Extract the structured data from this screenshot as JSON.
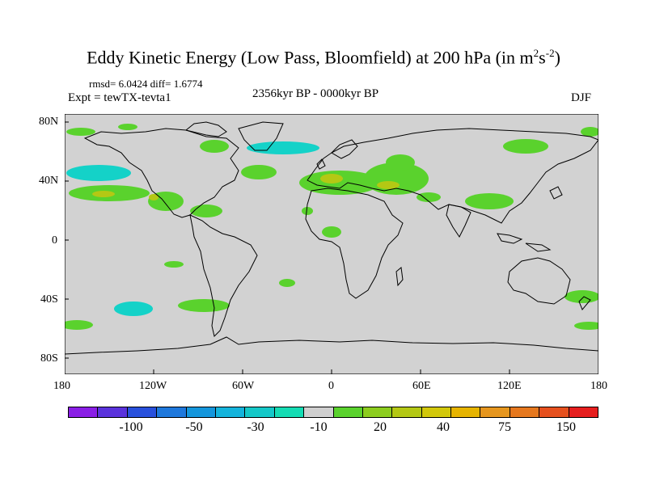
{
  "title": {
    "main": "Eddy Kinetic Energy (Low Pass, Bloomfield) at 200 hPa (in m",
    "sup1": "2",
    "mid": "s",
    "sup2": "-2",
    "end": ")"
  },
  "stats": "rmsd= 6.0424 diff= 1.6774",
  "experiment": "Expt = tewTX-tevta1",
  "period": "2356kyr BP - 0000kyr BP",
  "season": "DJF",
  "lat_labels": [
    "80N",
    "40N",
    "0",
    "40S",
    "80S"
  ],
  "lon_labels": [
    "180",
    "120W",
    "60W",
    "0",
    "60E",
    "120E",
    "180"
  ],
  "colorbar": {
    "colors": [
      "#8a1ee6",
      "#5a32dc",
      "#2850dc",
      "#1e78dc",
      "#1496dc",
      "#14b4dc",
      "#14c8c8",
      "#14dcb4",
      "#cfcfcf",
      "#5ad22d",
      "#8ccd1e",
      "#b4c814",
      "#d2c80a",
      "#e6b400",
      "#e6961e",
      "#e6781e",
      "#e6501e",
      "#e61e1e"
    ],
    "labels": [
      "-100",
      "-50",
      "-30",
      "-10",
      "20",
      "40",
      "75",
      "150"
    ]
  },
  "colors": {
    "land_bg": "#d2d2d2",
    "positive": "#5ad22d",
    "negative": "#14d2c8",
    "strong_positive": "#b4c814"
  }
}
